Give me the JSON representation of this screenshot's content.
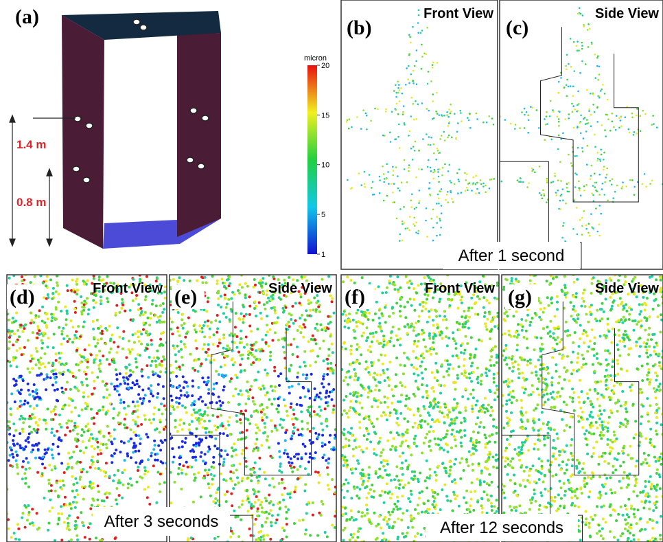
{
  "panels": [
    {
      "label": "(a)"
    },
    {
      "label": "(b)",
      "view": "Front View"
    },
    {
      "label": "(c)",
      "view": "Side View"
    },
    {
      "label": "(d)",
      "view": "Front View"
    },
    {
      "label": "(e)",
      "view": "Side View"
    },
    {
      "label": "(f)",
      "view": "Front View"
    },
    {
      "label": "(g)",
      "view": "Side View"
    }
  ],
  "captions": [
    "After 1 second",
    "After 3 seconds",
    "After 12 seconds"
  ],
  "heights": [
    "1.4 m",
    "0.8 m"
  ],
  "colorbar": {
    "label": "micron",
    "lim": [
      1,
      20
    ],
    "ticks": [
      1,
      5,
      10,
      15,
      20
    ]
  }
}
